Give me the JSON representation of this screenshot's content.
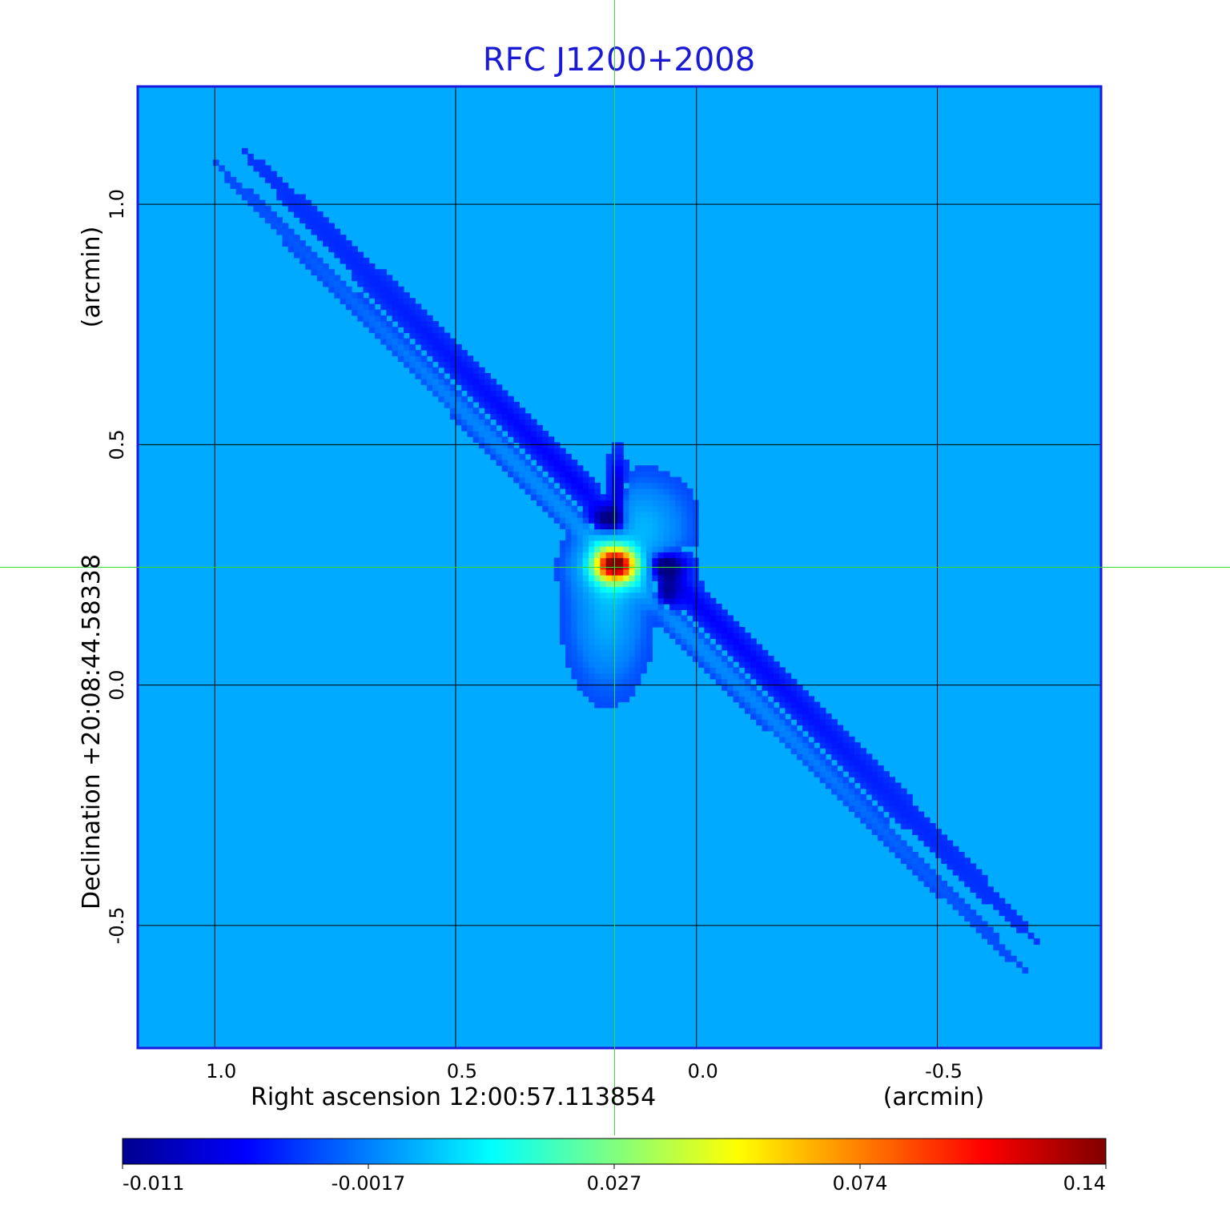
{
  "chart_data": {
    "type": "heatmap",
    "title": "RFC J1200+2008",
    "xlabel": "Right ascension  12:00:57.113854",
    "xunit": "(arcmin)",
    "ylabel": "Declination  +20:08:44.58338",
    "yunit": "(arcmin)",
    "xlim": [
      1.16,
      -0.84
    ],
    "ylim": [
      -0.755,
      1.245
    ],
    "x_ticks": [
      1.0,
      0.5,
      0.0,
      -0.5
    ],
    "x_tick_labels": [
      "1.0",
      "0.5",
      "0.0",
      "-0.5"
    ],
    "y_ticks": [
      1.0,
      0.5,
      0.0,
      -0.5
    ],
    "y_tick_labels": [
      "1.0",
      "0.5",
      "0.0",
      "-0.5"
    ],
    "grid": true,
    "crosshair": {
      "x": 0.17,
      "y": 0.245
    },
    "colorbar": {
      "ticks": [
        -0.011,
        -0.0017,
        0.027,
        0.074,
        0.14
      ],
      "tick_labels": [
        "-0.011",
        "-0.0017",
        "0.027",
        "0.074",
        "0.14"
      ],
      "colormap": "jet"
    },
    "background_level": -0.004,
    "features": [
      {
        "kind": "peak",
        "x": 0.17,
        "y": 0.245,
        "value": 0.14
      },
      {
        "kind": "negative_lobe",
        "x": 0.19,
        "y": 0.33,
        "value": -0.011
      },
      {
        "kind": "negative_lobe",
        "x": 0.07,
        "y": 0.24,
        "value": -0.011
      },
      {
        "kind": "negative_lobe",
        "x": 0.07,
        "y": 0.17,
        "value": -0.008
      },
      {
        "kind": "positive_sidelobe",
        "x": 0.12,
        "y": 0.33,
        "value": 0.004
      },
      {
        "kind": "positive_sidelobe",
        "x": 0.13,
        "y": 0.13,
        "value": 0.004
      },
      {
        "kind": "positive_sidelobe",
        "x": 0.3,
        "y": 0.25,
        "value": 0.003
      }
    ]
  },
  "colors": {
    "title": "#1a1ad6",
    "frame": "#1a1ae0",
    "crosshair": "#33dd33",
    "grid": "#000000"
  }
}
